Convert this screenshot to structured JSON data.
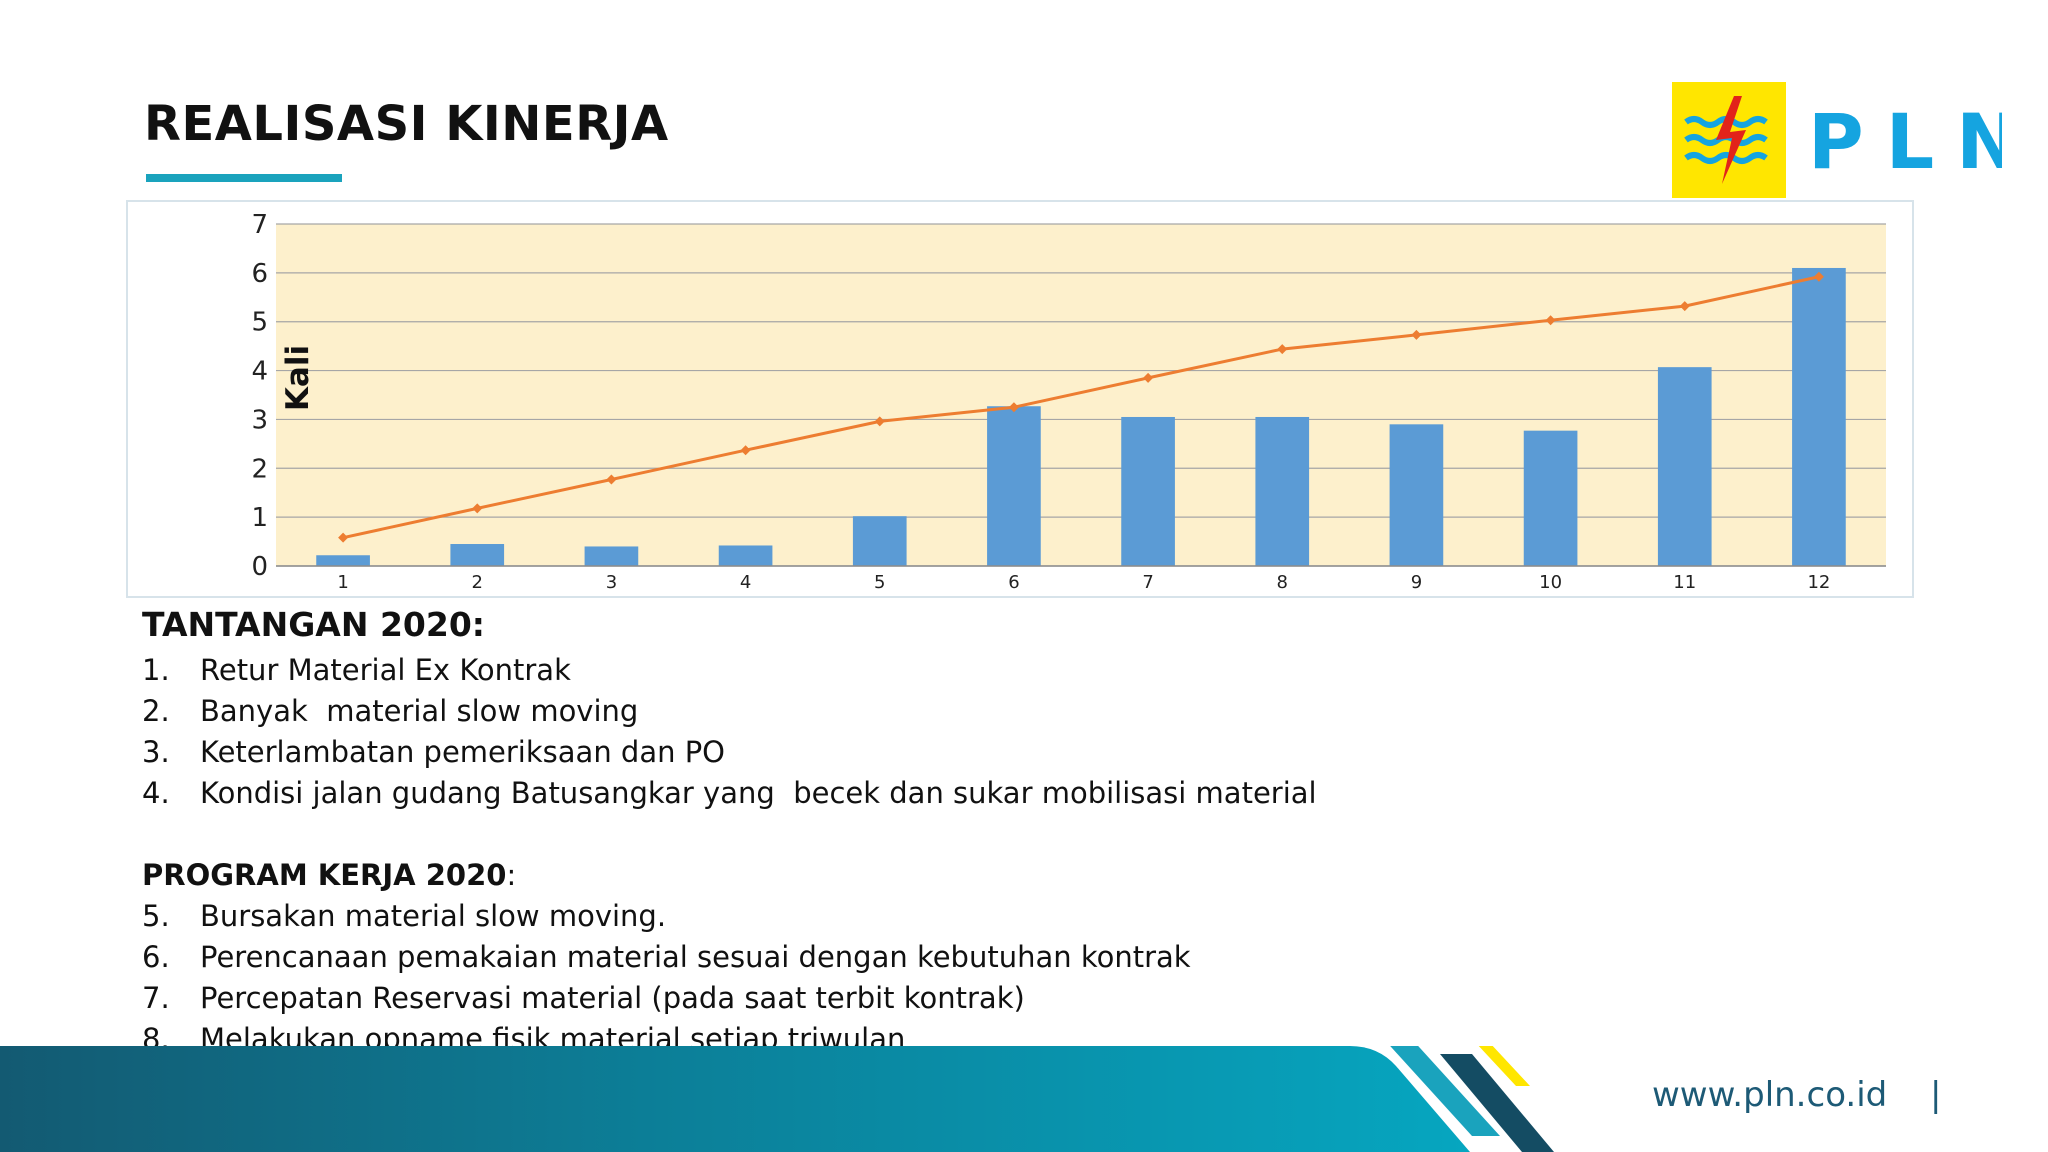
{
  "slide": {
    "title": "REALISASI KINERJA",
    "logo_text": "PLN",
    "footer_url": "www.pln.co.id",
    "footer_sep": "|"
  },
  "colors": {
    "accent": "#1aa3bd",
    "plot_bg": "#fdf0cc",
    "bar": "#5b9bd5",
    "line": "#ed7d31",
    "logo_yellow": "#ffe600",
    "logo_blue": "#15a4e0",
    "footer_blue": "#1d5a76"
  },
  "chart_data": {
    "type": "bar",
    "ylabel": "Kali",
    "ylim": [
      0,
      7
    ],
    "yticks": [
      "0",
      "1",
      "2",
      "3",
      "4",
      "5",
      "6",
      "7"
    ],
    "categories": [
      "1",
      "2",
      "3",
      "4",
      "5",
      "6",
      "7",
      "8",
      "9",
      "10",
      "11",
      "12"
    ],
    "grid": true,
    "series": [
      {
        "type": "bar",
        "values": [
          0.22,
          0.45,
          0.4,
          0.42,
          1.02,
          3.27,
          3.05,
          3.05,
          2.9,
          2.77,
          4.07,
          6.1
        ]
      },
      {
        "type": "line",
        "values": [
          0.58,
          1.18,
          1.77,
          2.37,
          2.96,
          3.25,
          3.85,
          4.44,
          4.73,
          5.03,
          5.32,
          5.92
        ]
      }
    ]
  },
  "tantangan": {
    "heading": "TANTANGAN 2020:",
    "items": [
      {
        "num": "1.",
        "text": "Retur Material Ex Kontrak"
      },
      {
        "num": "2.",
        "text": "Banyak  material slow moving"
      },
      {
        "num": "3.",
        "text": "Keterlambatan pemeriksaan dan PO"
      },
      {
        "num": "4.",
        "text": "Kondisi jalan gudang Batusangkar yang  becek dan sukar mobilisasi material"
      }
    ]
  },
  "program": {
    "heading": "PROGRAM KERJA 2020",
    "colon": ":",
    "items": [
      {
        "num": "5.",
        "text": "Bursakan material slow moving."
      },
      {
        "num": "6.",
        "text": "Perencanaan pemakaian material sesuai dengan kebutuhan kontrak"
      },
      {
        "num": "7.",
        "text": "Percepatan Reservasi material (pada saat terbit kontrak)"
      },
      {
        "num": "8.",
        "text": "Melakukan opname fisik material setiap triwulan"
      }
    ]
  }
}
